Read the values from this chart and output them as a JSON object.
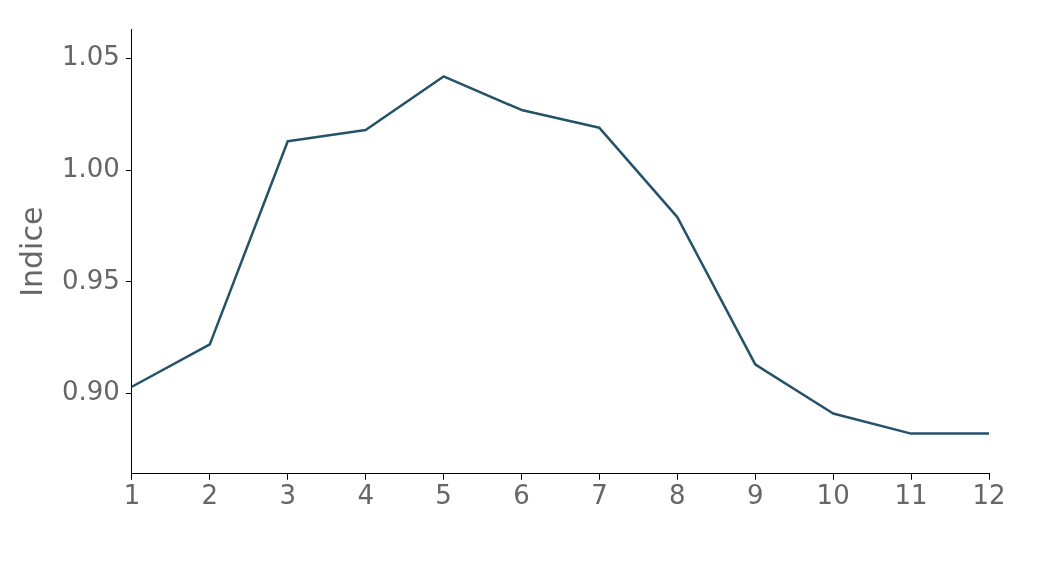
{
  "chart_data": {
    "type": "line",
    "ylabel": "Indice",
    "x": [
      1,
      2,
      3,
      4,
      5,
      6,
      7,
      8,
      9,
      10,
      11,
      12
    ],
    "series": [
      {
        "color": "#245269",
        "values": [
          0.903,
          0.922,
          1.013,
          1.018,
          1.042,
          1.027,
          1.019,
          0.979,
          0.913,
          0.891,
          0.882,
          0.882
        ]
      }
    ],
    "xlim": [
      1,
      12
    ],
    "xticks": [
      1,
      2,
      3,
      4,
      5,
      6,
      7,
      8,
      9,
      10,
      11,
      12
    ],
    "ylim": [
      0.864,
      1.063
    ],
    "yticks": [
      {
        "value": 0.9,
        "label": "0.90"
      },
      {
        "value": 0.95,
        "label": "0.95"
      },
      {
        "value": 1.0,
        "label": "1.00"
      },
      {
        "value": 1.05,
        "label": "1.05"
      }
    ],
    "grid": false,
    "legend": false,
    "marker": "none",
    "line_style": "solid"
  }
}
